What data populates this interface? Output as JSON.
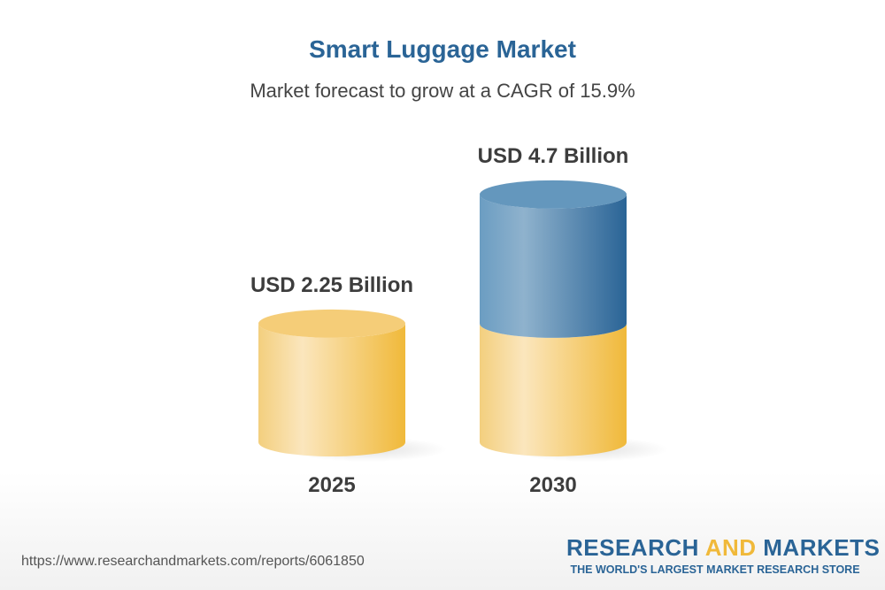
{
  "title": "Smart Luggage Market",
  "subtitle": "Market forecast to grow at a CAGR of 15.9%",
  "footer": {
    "url": "https://www.researchandmarkets.com/reports/6061850",
    "logo_word1": "RESEARCH",
    "logo_word2": "AND",
    "logo_word3": "MARKETS",
    "logo_tagline": "THE WORLD'S LARGEST MARKET RESEARCH STORE"
  },
  "chart_data": {
    "type": "bar",
    "style": "3d-cylinder",
    "title": "Smart Luggage Market",
    "subtitle": "Market forecast to grow at a CAGR of 15.9%",
    "categories": [
      "2025",
      "2030"
    ],
    "values": [
      2.25,
      4.7
    ],
    "unit": "USD Billion",
    "data_labels": [
      "USD 2.25 Billion",
      "USD 4.7 Billion"
    ],
    "cagr": "15.9%",
    "colors": {
      "base": "#f0b93a",
      "growth": "#2a6496"
    }
  }
}
